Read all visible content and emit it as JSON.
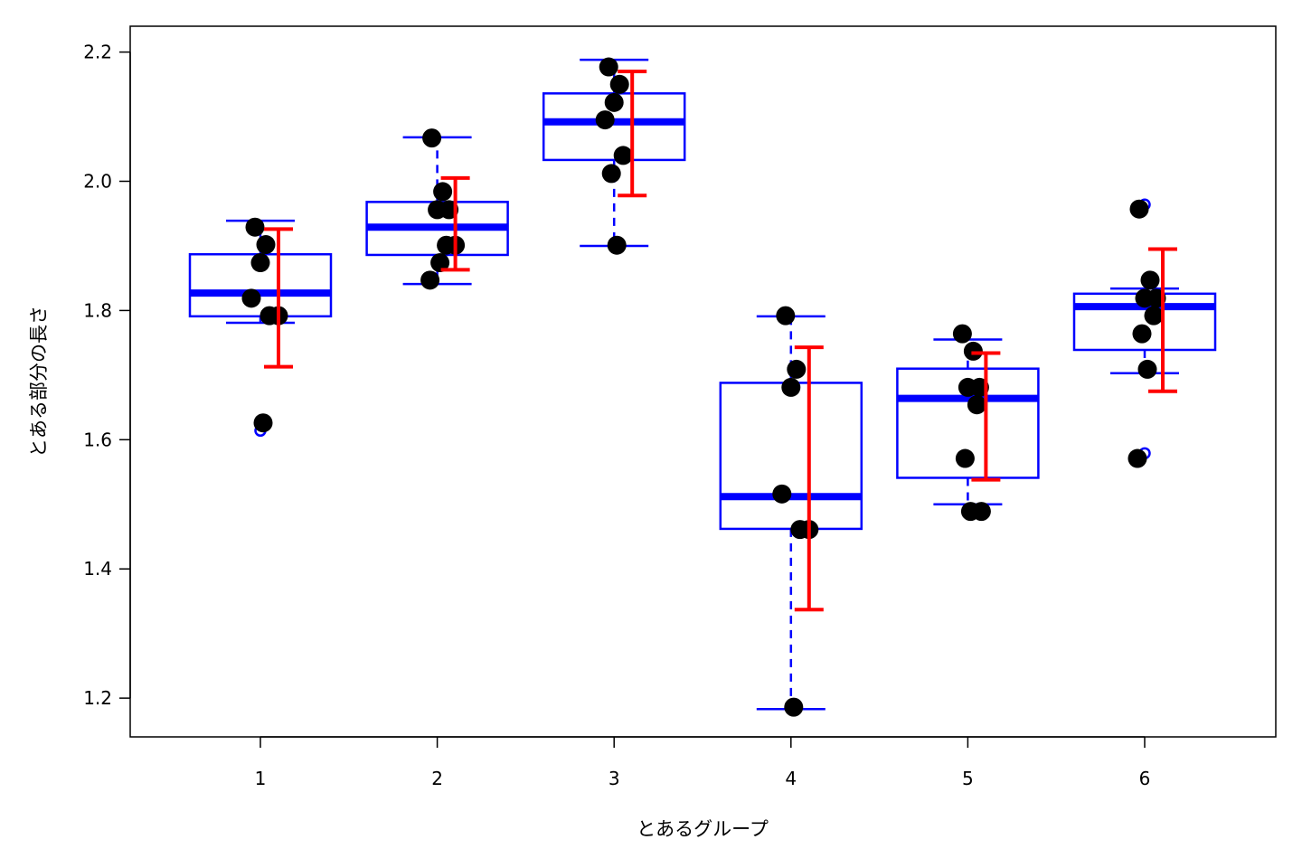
{
  "chart_data": {
    "type": "box",
    "xlabel": "とあるグループ",
    "ylabel": "とある部分の長さ",
    "categories": [
      "1",
      "2",
      "3",
      "4",
      "5",
      "6"
    ],
    "ylim": [
      1.14,
      2.24
    ],
    "yticks": [
      "1.2",
      "1.4",
      "1.6",
      "1.8",
      "2.0",
      "2.2"
    ],
    "colors": {
      "box": "#0000ff",
      "errorbar": "#ff0000",
      "points": "#000000"
    },
    "boxes": [
      {
        "group": "1",
        "whisker_low": 1.781,
        "q1": 1.791,
        "median": 1.827,
        "q3": 1.887,
        "whisker_high": 1.939,
        "outliers": [
          1.614
        ]
      },
      {
        "group": "2",
        "whisker_low": 1.841,
        "q1": 1.886,
        "median": 1.929,
        "q3": 1.968,
        "whisker_high": 2.068,
        "outliers": []
      },
      {
        "group": "3",
        "whisker_low": 1.9,
        "q1": 2.033,
        "median": 2.092,
        "q3": 2.136,
        "whisker_high": 2.188,
        "outliers": []
      },
      {
        "group": "4",
        "whisker_low": 1.183,
        "q1": 1.462,
        "median": 1.512,
        "q3": 1.688,
        "whisker_high": 1.791,
        "outliers": []
      },
      {
        "group": "5",
        "whisker_low": 1.5,
        "q1": 1.541,
        "median": 1.664,
        "q3": 1.71,
        "whisker_high": 1.755,
        "outliers": []
      },
      {
        "group": "6",
        "whisker_low": 1.703,
        "q1": 1.739,
        "median": 1.806,
        "q3": 1.826,
        "whisker_high": 1.834,
        "outliers": [
          1.964,
          1.579
        ]
      }
    ],
    "errorbars": [
      {
        "group": "1",
        "mean": 1.819,
        "low": 1.713,
        "high": 1.926
      },
      {
        "group": "2",
        "mean": 1.934,
        "low": 1.863,
        "high": 2.005
      },
      {
        "group": "3",
        "mean": 2.074,
        "low": 1.978,
        "high": 2.17
      },
      {
        "group": "4",
        "mean": 1.54,
        "low": 1.337,
        "high": 1.743
      },
      {
        "group": "5",
        "mean": 1.636,
        "low": 1.538,
        "high": 1.734
      },
      {
        "group": "6",
        "mean": 1.785,
        "low": 1.675,
        "high": 1.895
      }
    ],
    "points": [
      {
        "group": "1",
        "values": [
          1.929,
          1.902,
          1.874,
          1.819,
          1.792,
          1.792,
          1.626
        ]
      },
      {
        "group": "2",
        "values": [
          2.067,
          1.984,
          1.956,
          1.956,
          1.901,
          1.901,
          1.874,
          1.847
        ]
      },
      {
        "group": "3",
        "values": [
          2.177,
          2.15,
          2.122,
          2.095,
          2.04,
          2.012,
          1.901
        ]
      },
      {
        "group": "4",
        "values": [
          1.792,
          1.709,
          1.681,
          1.516,
          1.461,
          1.461,
          1.186
        ]
      },
      {
        "group": "5",
        "values": [
          1.764,
          1.737,
          1.681,
          1.681,
          1.654,
          1.571,
          1.489,
          1.489
        ]
      },
      {
        "group": "6",
        "values": [
          1.957,
          1.847,
          1.819,
          1.819,
          1.792,
          1.764,
          1.709,
          1.571
        ]
      }
    ]
  }
}
